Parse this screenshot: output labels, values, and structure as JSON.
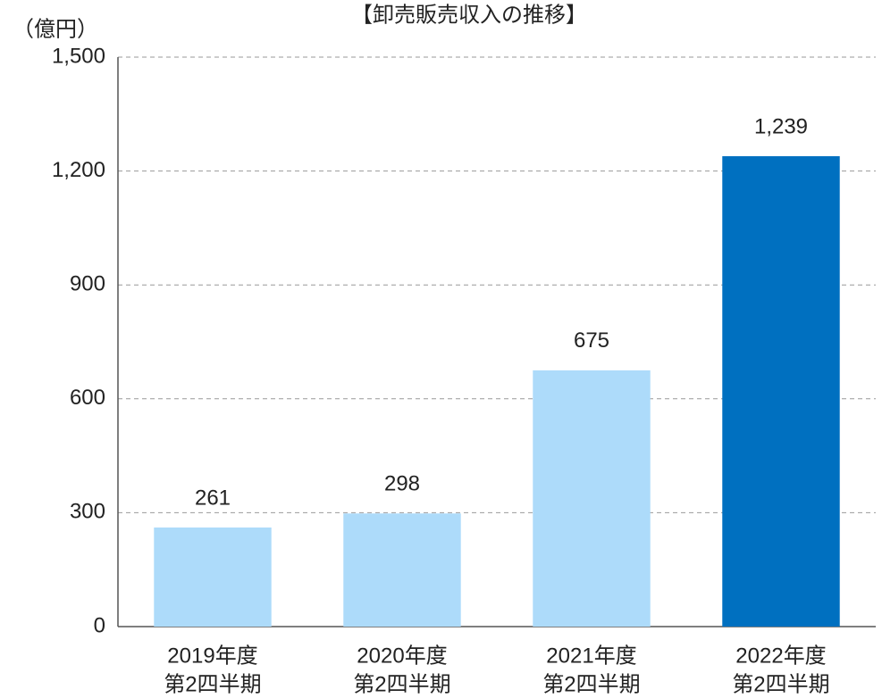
{
  "chart_data": {
    "type": "bar",
    "title": "【卸売販売収入の推移】",
    "y_label": "（億円）",
    "categories": [
      [
        "2019年度",
        "第2四半期"
      ],
      [
        "2020年度",
        "第2四半期"
      ],
      [
        "2021年度",
        "第2四半期"
      ],
      [
        "2022年度",
        "第2四半期"
      ]
    ],
    "values": [
      261,
      298,
      675,
      1239
    ],
    "value_labels": [
      "261",
      "298",
      "675",
      "1,239"
    ],
    "colors": [
      "#addbfa",
      "#addbfa",
      "#addbfa",
      "#0070c0"
    ],
    "ylim": [
      0,
      1500
    ],
    "yticks": [
      0,
      300,
      600,
      900,
      {
        "value": 1200,
        "label": "1,200"
      },
      {
        "value": 1500,
        "label": "1,500"
      }
    ],
    "grid": true
  }
}
